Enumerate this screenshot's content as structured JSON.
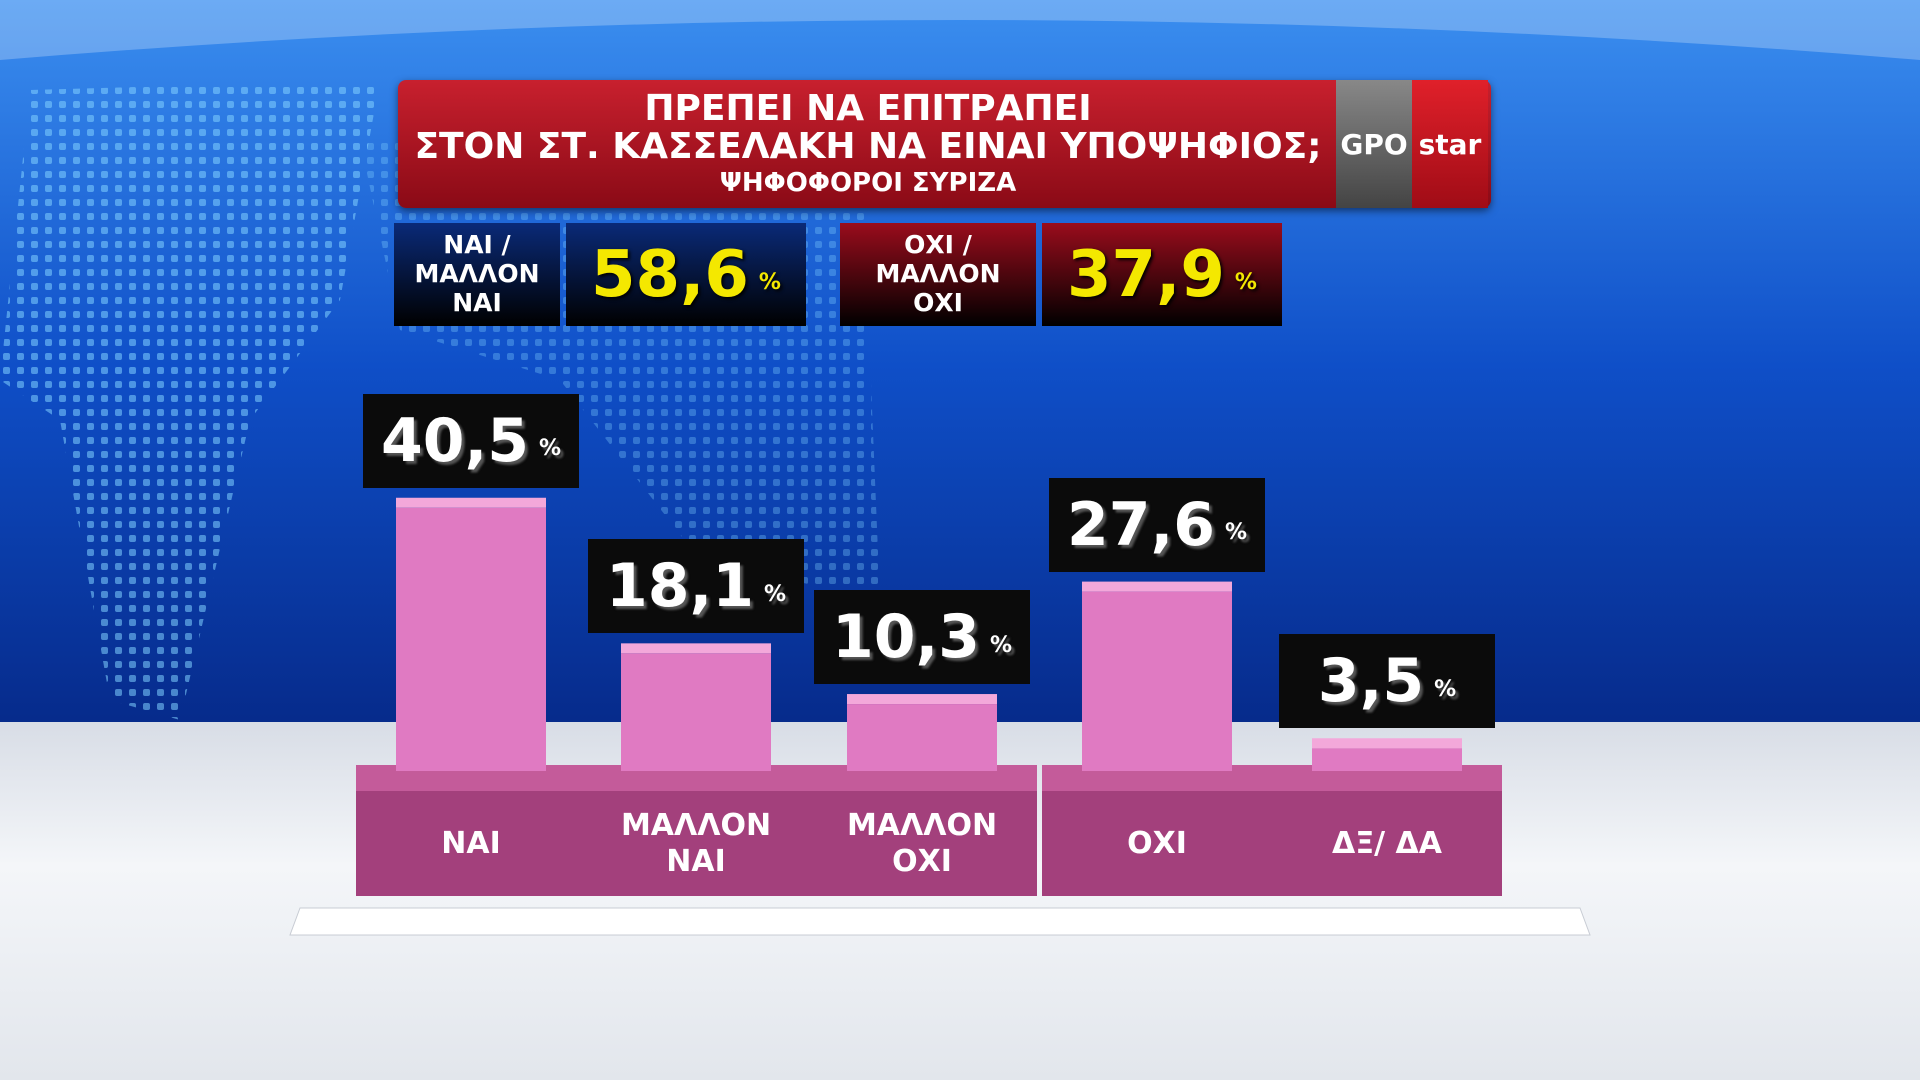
{
  "chart_data": {
    "type": "bar",
    "title_lines": [
      "ΠΡΕΠΕΙ ΝΑ ΕΠΙΤΡΑΠΕΙ",
      "ΣΤΟΝ ΣΤ. ΚΑΣΣΕΛΑΚΗ ΝΑ ΕΙΝΑΙ ΥΠΟΨΗΦΙΟΣ;"
    ],
    "subtitle": "ΨΗΦΟΦΟΡΟΙ ΣΥΡΙΖΑ",
    "logos": [
      "GPO",
      "star"
    ],
    "summary": [
      {
        "label": "ΝΑΙ / ΜΑΛΛΟΝ ΝΑΙ",
        "value": 58.6,
        "value_label": "58,6",
        "color": "#0a2a78"
      },
      {
        "label": "ΟΧΙ / ΜΑΛΛΟΝ ΟΧΙ",
        "value": 37.9,
        "value_label": "37,9",
        "color": "#9a0c1c"
      }
    ],
    "unit": "%",
    "categories": [
      "ΝΑΙ",
      "ΜΑΛΛΟΝ ΝΑΙ",
      "ΜΑΛΛΟΝ ΟΧΙ",
      "ΟΧΙ",
      "ΔΞ/ ΔΑ"
    ],
    "values": [
      40.5,
      18.1,
      10.3,
      27.6,
      3.5
    ],
    "value_labels": [
      "40,5",
      "18,1",
      "10,3",
      "27,6",
      "3,5"
    ],
    "color": "#e07ac2"
  }
}
